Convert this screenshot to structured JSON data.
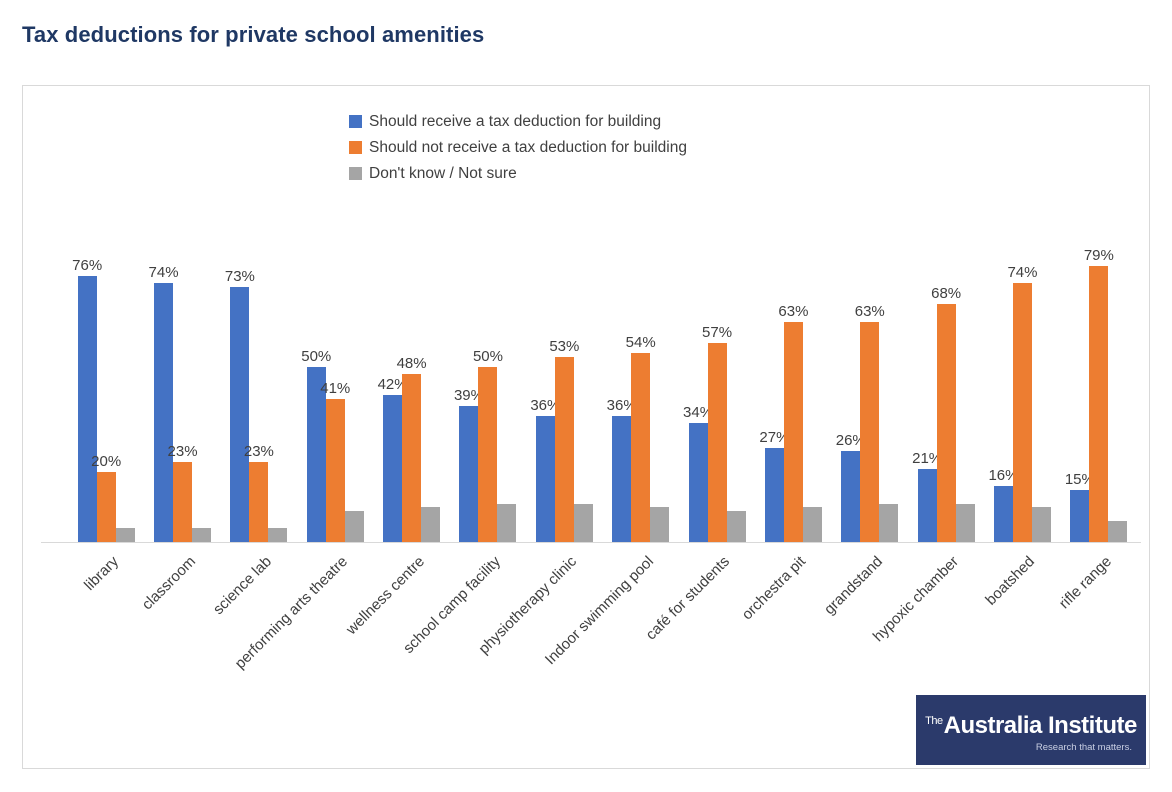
{
  "title": "Tax deductions for private school amenities",
  "logo": {
    "prefix": "The",
    "name": "Australia Institute",
    "tagline": "Research that matters."
  },
  "colors": {
    "title_text": "#1F3864",
    "frame_border": "#D9D9D9",
    "axis_line": "#D9D9D9",
    "label_text": "#404040",
    "logo_background": "#2B3A6B",
    "series_blue": "#4472C4",
    "series_orange": "#ED7D31",
    "series_gray": "#A5A5A5"
  },
  "chart_data": {
    "type": "bar",
    "title": "Tax deductions for private school amenities",
    "categories": [
      "library",
      "classroom",
      "science lab",
      "performing arts theatre",
      "wellness centre",
      "school camp facility",
      "physiotherapy clinic",
      "Indoor swimming pool",
      "café for students",
      "orchestra pit",
      "grandstand",
      "hypoxic chamber",
      "boatshed",
      "rifle range"
    ],
    "series": [
      {
        "name": "Should receive a tax deduction for building",
        "color": "#4472C4",
        "labels_shown": true,
        "values": [
          76,
          74,
          73,
          50,
          42,
          39,
          36,
          36,
          34,
          27,
          26,
          21,
          16,
          15
        ]
      },
      {
        "name": "Should not receive a tax deduction for building",
        "color": "#ED7D31",
        "labels_shown": true,
        "values": [
          20,
          23,
          23,
          41,
          48,
          50,
          53,
          54,
          57,
          63,
          63,
          68,
          74,
          79
        ]
      },
      {
        "name": "Don't know / Not sure",
        "color": "#A5A5A5",
        "labels_shown": false,
        "values_estimated": true,
        "values": [
          4,
          4,
          4,
          9,
          10,
          11,
          11,
          10,
          9,
          10,
          11,
          11,
          10,
          6
        ]
      }
    ],
    "ylim": [
      0,
      100
    ],
    "y_unit": "%",
    "value_label_format": "{value}%",
    "grid": false,
    "y_axis_shown": false,
    "legend_position": "top",
    "category_label_rotation_deg": -45
  }
}
